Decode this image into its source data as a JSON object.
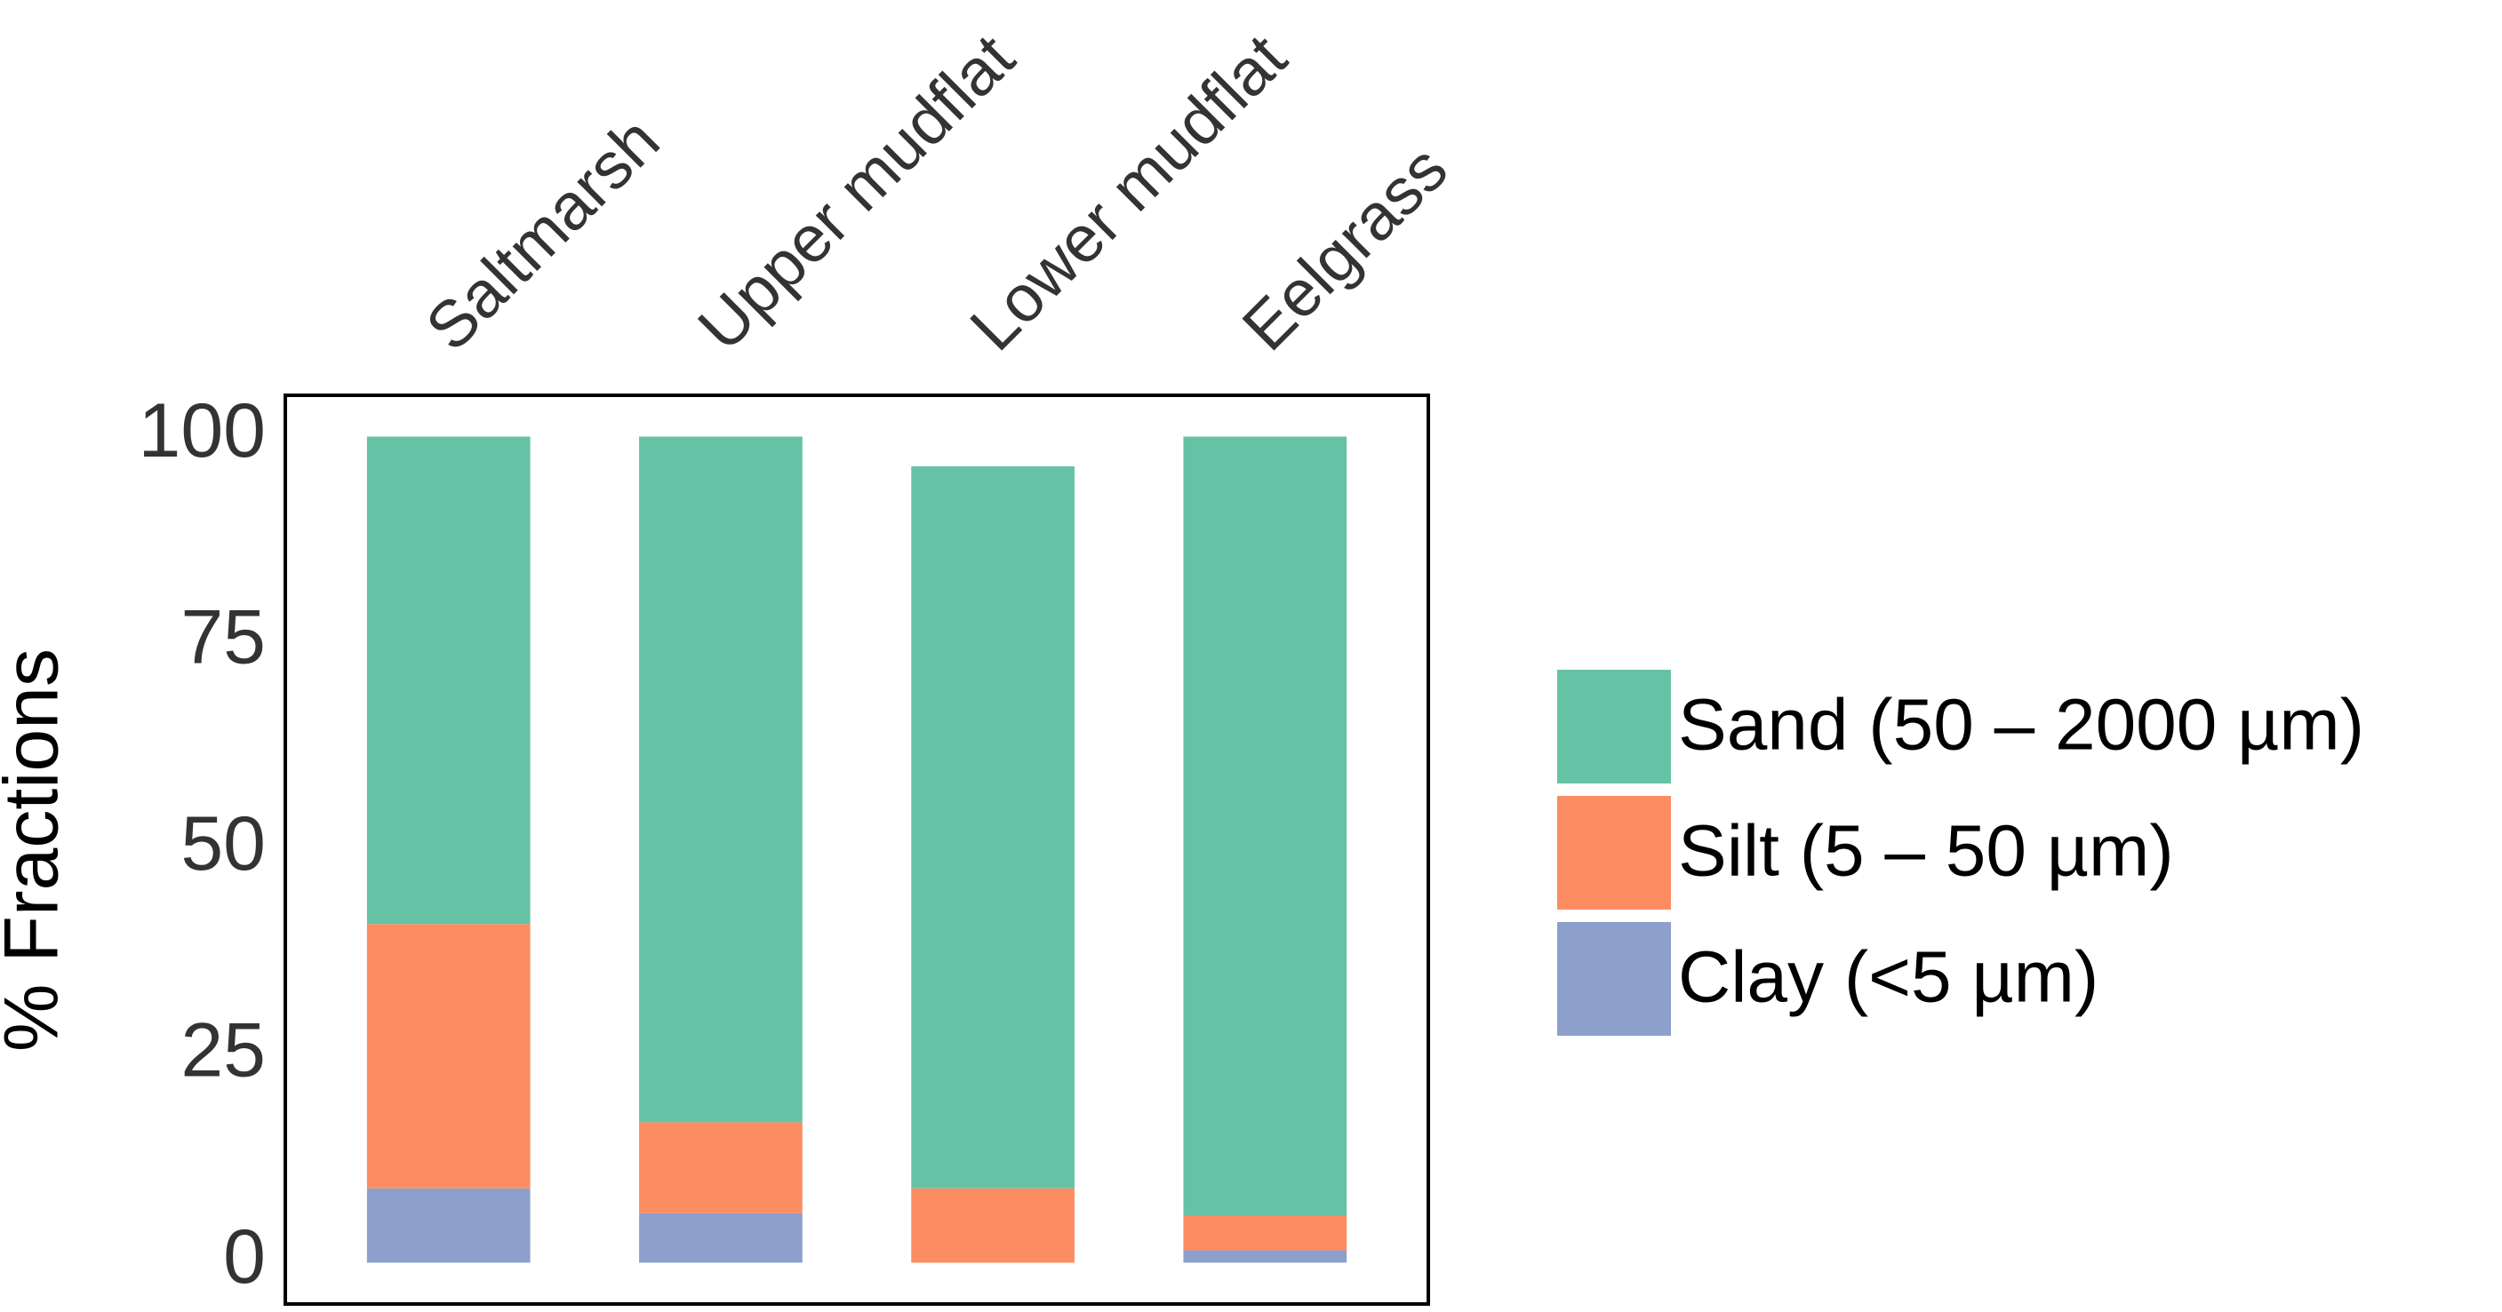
{
  "chart_data": {
    "type": "stacked_bar",
    "ylabel": "% Fractions",
    "categories": [
      "Saltmarsh",
      "Upper mudflat",
      "Lower mudflat",
      "Eelgrass"
    ],
    "series": [
      {
        "name": "Sand (50 – 2000 µm)",
        "color": "#66c2a5",
        "values": [
          59,
          83,
          87.4,
          94.3
        ]
      },
      {
        "name": "Silt (5 – 50 µm)",
        "color": "#fc8d62",
        "values": [
          32,
          11,
          9,
          4.2
        ]
      },
      {
        "name": "Clay (<5 µm)",
        "color": "#8da0cb",
        "values": [
          9,
          6,
          0,
          1.5
        ]
      }
    ],
    "ylim": [
      -5,
      105
    ],
    "yticks": [
      0,
      25,
      50,
      75,
      100
    ],
    "grid": false,
    "legend": "right"
  }
}
